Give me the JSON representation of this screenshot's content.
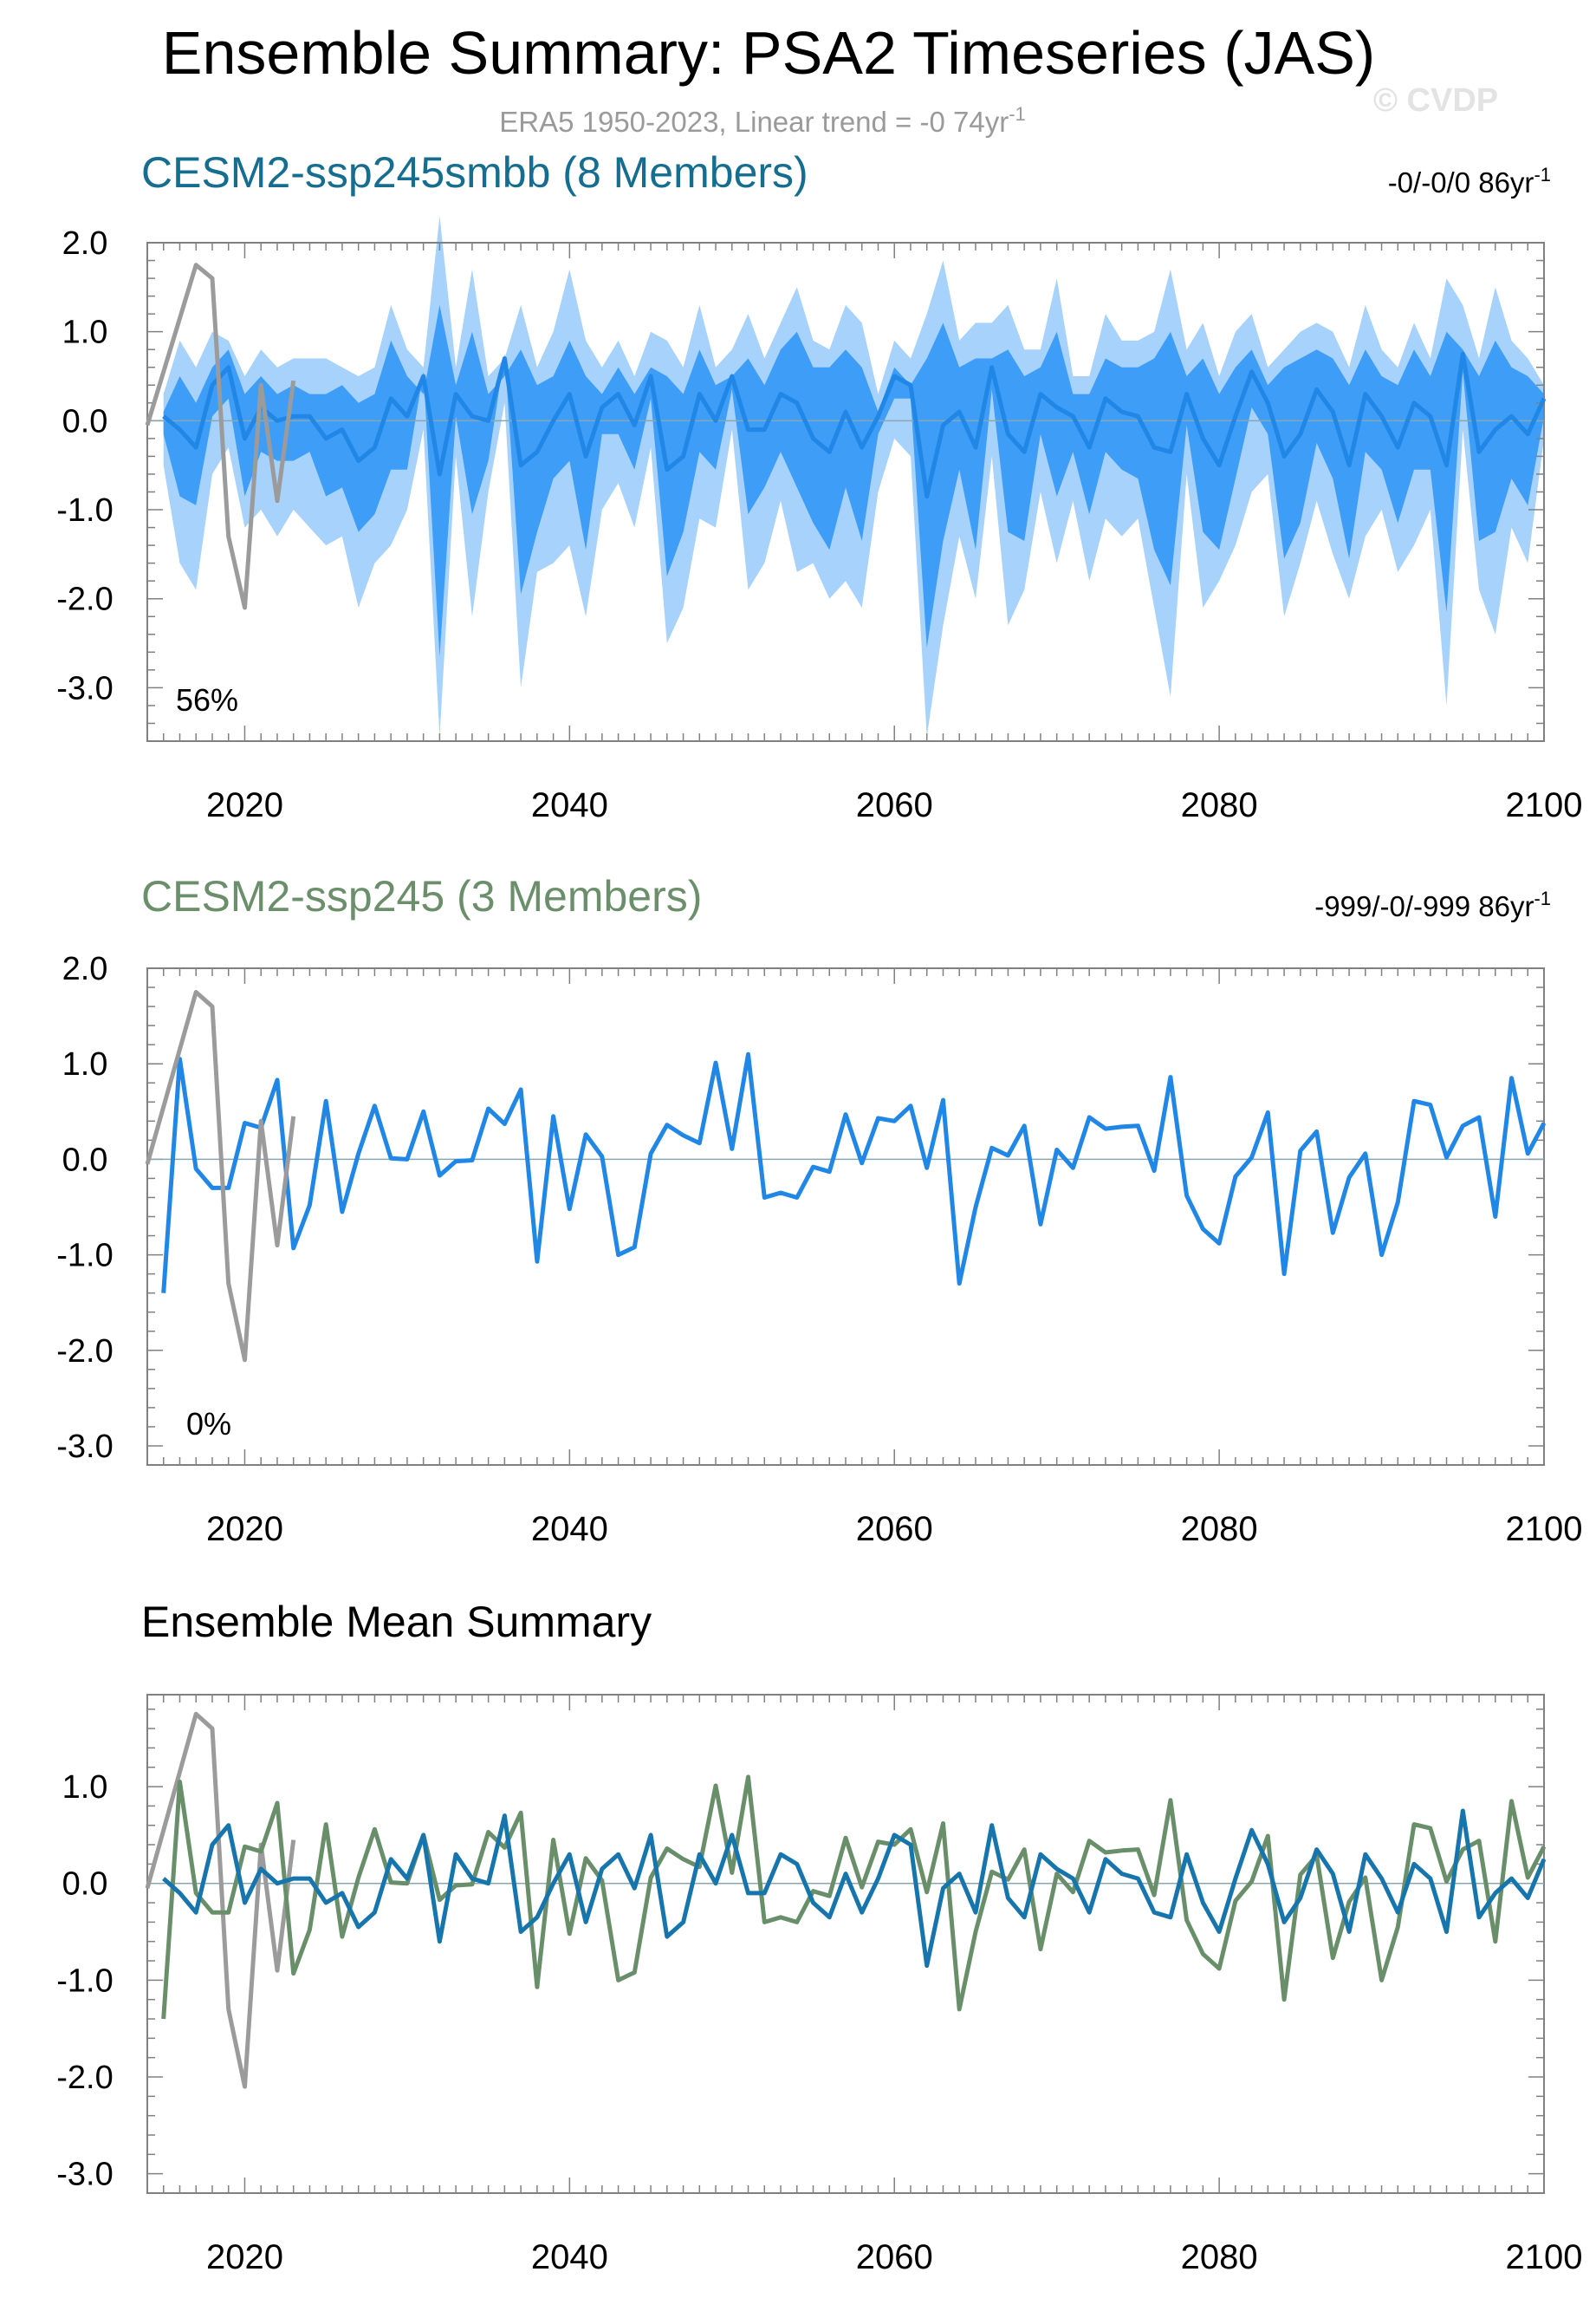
{
  "title": "Ensemble Summary: PSA2 Timeseries (JAS)",
  "subtitle": "ERA5 1950-2023, Linear trend = -0 74yr",
  "subtitle_sup": "-1",
  "watermark": "© CVDP",
  "colors": {
    "obs": "#9b9b9b",
    "ens_mean_smbb": "#1775ad",
    "band_outer": "#a7d2fb",
    "band_inner": "#3d9df7",
    "ssp245_line": "#2187e6",
    "ssp245_mean": "#698f6a",
    "smbb_title": "#156d90",
    "ssp245_title": "#6b8f6a",
    "zero_line": "#8aa6b3",
    "axis": "#808080"
  },
  "chart_data": [
    {
      "type": "area",
      "title": "CESM2-ssp245smbb (8 Members)",
      "trend_label": "-0/-0/0 86yr",
      "trend_sup": "-1",
      "pct_label": "56%",
      "xlim": [
        2014,
        2100
      ],
      "ylim": [
        -3.6,
        2.0
      ],
      "ytick_values": [
        2.0,
        1.0,
        0.0,
        -1.0,
        -2.0,
        -3.0
      ],
      "yticks": [
        "2.0",
        "1.0",
        "0.0",
        "-1.0",
        "-2.0",
        "-3.0"
      ],
      "xticks": [
        "2020",
        "2040",
        "2060",
        "2080",
        "2100"
      ],
      "xtick_values": [
        2020,
        2040,
        2060,
        2080,
        2100
      ],
      "x_start": 2015,
      "ens_max": [
        0.3,
        0.9,
        0.6,
        1.0,
        0.9,
        0.5,
        0.8,
        0.6,
        0.7,
        0.7,
        0.7,
        0.6,
        0.5,
        0.6,
        1.3,
        0.8,
        0.6,
        2.3,
        0.6,
        1.7,
        0.5,
        0.7,
        1.3,
        0.6,
        1.0,
        1.7,
        0.9,
        0.6,
        0.9,
        0.5,
        1.0,
        0.9,
        0.6,
        1.3,
        0.6,
        0.8,
        1.2,
        0.7,
        1.1,
        1.5,
        0.9,
        0.8,
        1.3,
        1.1,
        0.3,
        0.9,
        0.7,
        1.2,
        1.8,
        0.9,
        1.1,
        1.1,
        1.3,
        0.8,
        0.8,
        1.6,
        0.5,
        0.5,
        1.2,
        0.9,
        0.9,
        1.0,
        1.7,
        0.8,
        1.1,
        0.5,
        1.0,
        1.2,
        0.6,
        0.8,
        1.0,
        1.1,
        1.0,
        0.6,
        1.3,
        0.8,
        0.6,
        1.1,
        0.7,
        1.6,
        1.3,
        0.7,
        1.5,
        0.9,
        0.7,
        0.4
      ],
      "inner_max": [
        0.1,
        0.5,
        0.2,
        0.6,
        0.8,
        0.3,
        0.5,
        0.3,
        0.4,
        0.3,
        0.3,
        0.4,
        0.2,
        0.3,
        0.9,
        0.5,
        0.3,
        1.3,
        0.4,
        1.0,
        0.3,
        0.5,
        0.8,
        0.4,
        0.5,
        0.9,
        0.5,
        0.3,
        0.6,
        0.3,
        0.6,
        0.5,
        0.3,
        0.8,
        0.4,
        0.5,
        0.7,
        0.4,
        0.8,
        1.0,
        0.6,
        0.6,
        0.8,
        0.6,
        0.1,
        0.6,
        0.4,
        0.7,
        1.1,
        0.6,
        0.7,
        0.7,
        0.8,
        0.5,
        0.6,
        1.0,
        0.3,
        0.3,
        0.7,
        0.6,
        0.6,
        0.7,
        1.0,
        0.5,
        0.7,
        0.3,
        0.6,
        0.8,
        0.4,
        0.6,
        0.7,
        0.8,
        0.7,
        0.4,
        0.8,
        0.5,
        0.4,
        0.8,
        0.5,
        1.0,
        0.8,
        0.5,
        0.9,
        0.6,
        0.5,
        0.3
      ],
      "ens_mean": [
        0.05,
        -0.1,
        -0.3,
        0.4,
        0.6,
        -0.2,
        0.15,
        0.0,
        0.05,
        0.05,
        -0.2,
        -0.1,
        -0.45,
        -0.3,
        0.25,
        0.05,
        0.5,
        -0.6,
        0.3,
        0.05,
        0.0,
        0.7,
        -0.5,
        -0.35,
        0.0,
        0.3,
        -0.4,
        0.15,
        0.3,
        -0.05,
        0.5,
        -0.55,
        -0.4,
        0.3,
        0.0,
        0.5,
        -0.1,
        -0.1,
        0.3,
        0.2,
        -0.2,
        -0.35,
        0.1,
        -0.3,
        0.05,
        0.5,
        0.4,
        -0.85,
        -0.05,
        0.1,
        -0.3,
        0.6,
        -0.15,
        -0.35,
        0.3,
        0.15,
        0.05,
        -0.3,
        0.25,
        0.1,
        0.05,
        -0.3,
        -0.35,
        0.3,
        -0.2,
        -0.5,
        0.05,
        0.55,
        0.2,
        -0.4,
        -0.15,
        0.35,
        0.1,
        -0.5,
        0.3,
        0.05,
        -0.3,
        0.2,
        0.05,
        -0.5,
        0.75,
        -0.35,
        -0.1,
        0.05,
        -0.15,
        0.25
      ]
    },
    {
      "type": "line",
      "title": "CESM2-ssp245 (3 Members)",
      "trend_label": "-999/-0/-999 86yr",
      "trend_sup": "-1",
      "pct_label": "0%",
      "xlim": [
        2014,
        2100
      ],
      "ylim": [
        -3.2,
        2.0
      ],
      "ytick_values": [
        2.0,
        1.0,
        0.0,
        -1.0,
        -2.0,
        -3.0
      ],
      "yticks": [
        "2.0",
        "1.0",
        "0.0",
        "-1.0",
        "-2.0",
        "-3.0"
      ],
      "xticks": [
        "2020",
        "2040",
        "2060",
        "2080",
        "2100"
      ],
      "xtick_values": [
        2020,
        2040,
        2060,
        2080,
        2100
      ],
      "x_start": 2015,
      "values": [
        -1.4,
        1.05,
        -0.1,
        -0.3,
        -0.3,
        0.38,
        0.33,
        0.83,
        -0.93,
        -0.48,
        0.61,
        -0.55,
        0.06,
        0.56,
        0.01,
        0.0,
        0.5,
        -0.17,
        -0.02,
        -0.01,
        0.53,
        0.37,
        0.73,
        -1.07,
        0.45,
        -0.52,
        0.26,
        0.03,
        -1.0,
        -0.92,
        0.06,
        0.36,
        0.25,
        0.17,
        1.01,
        0.11,
        1.1,
        -0.4,
        -0.35,
        -0.4,
        -0.08,
        -0.13,
        0.47,
        -0.04,
        0.43,
        0.4,
        0.56,
        -0.09,
        0.62,
        -1.3,
        -0.5,
        0.12,
        0.04,
        0.35,
        -0.68,
        0.1,
        -0.09,
        0.44,
        0.32,
        0.34,
        0.35,
        -0.12,
        0.86,
        -0.38,
        -0.73,
        -0.88,
        -0.18,
        0.02,
        0.49,
        -1.2,
        0.09,
        0.29,
        -0.77,
        -0.19,
        0.06,
        -1.0,
        -0.45,
        0.61,
        0.57,
        0.02,
        0.35,
        0.44,
        -0.6,
        0.85,
        0.06,
        0.38
      ]
    },
    {
      "type": "line",
      "title": "Ensemble Mean Summary",
      "xlim": [
        2014,
        2100
      ],
      "ylim": [
        -3.2,
        1.95
      ],
      "ytick_values": [
        1.0,
        0.0,
        -1.0,
        -2.0,
        -3.0
      ],
      "yticks": [
        "1.0",
        "0.0",
        "-1.0",
        "-2.0",
        "-3.0"
      ],
      "xticks": [
        "2020",
        "2040",
        "2060",
        "2080",
        "2100"
      ],
      "xtick_values": [
        2020,
        2040,
        2060,
        2080,
        2100
      ],
      "series": [
        {
          "name": "CESM2-ssp245smbb",
          "source": "panel0_mean"
        },
        {
          "name": "CESM2-ssp245",
          "source": "panel1_values"
        },
        {
          "name": "ERA5",
          "source": "obs"
        }
      ]
    }
  ],
  "observations": {
    "name": "ERA5",
    "x": [
      2014,
      2017,
      2018,
      2019,
      2020,
      2021,
      2022,
      2023
    ],
    "values": [
      -0.05,
      1.75,
      1.6,
      -1.3,
      -2.1,
      0.4,
      -0.9,
      0.45
    ]
  }
}
